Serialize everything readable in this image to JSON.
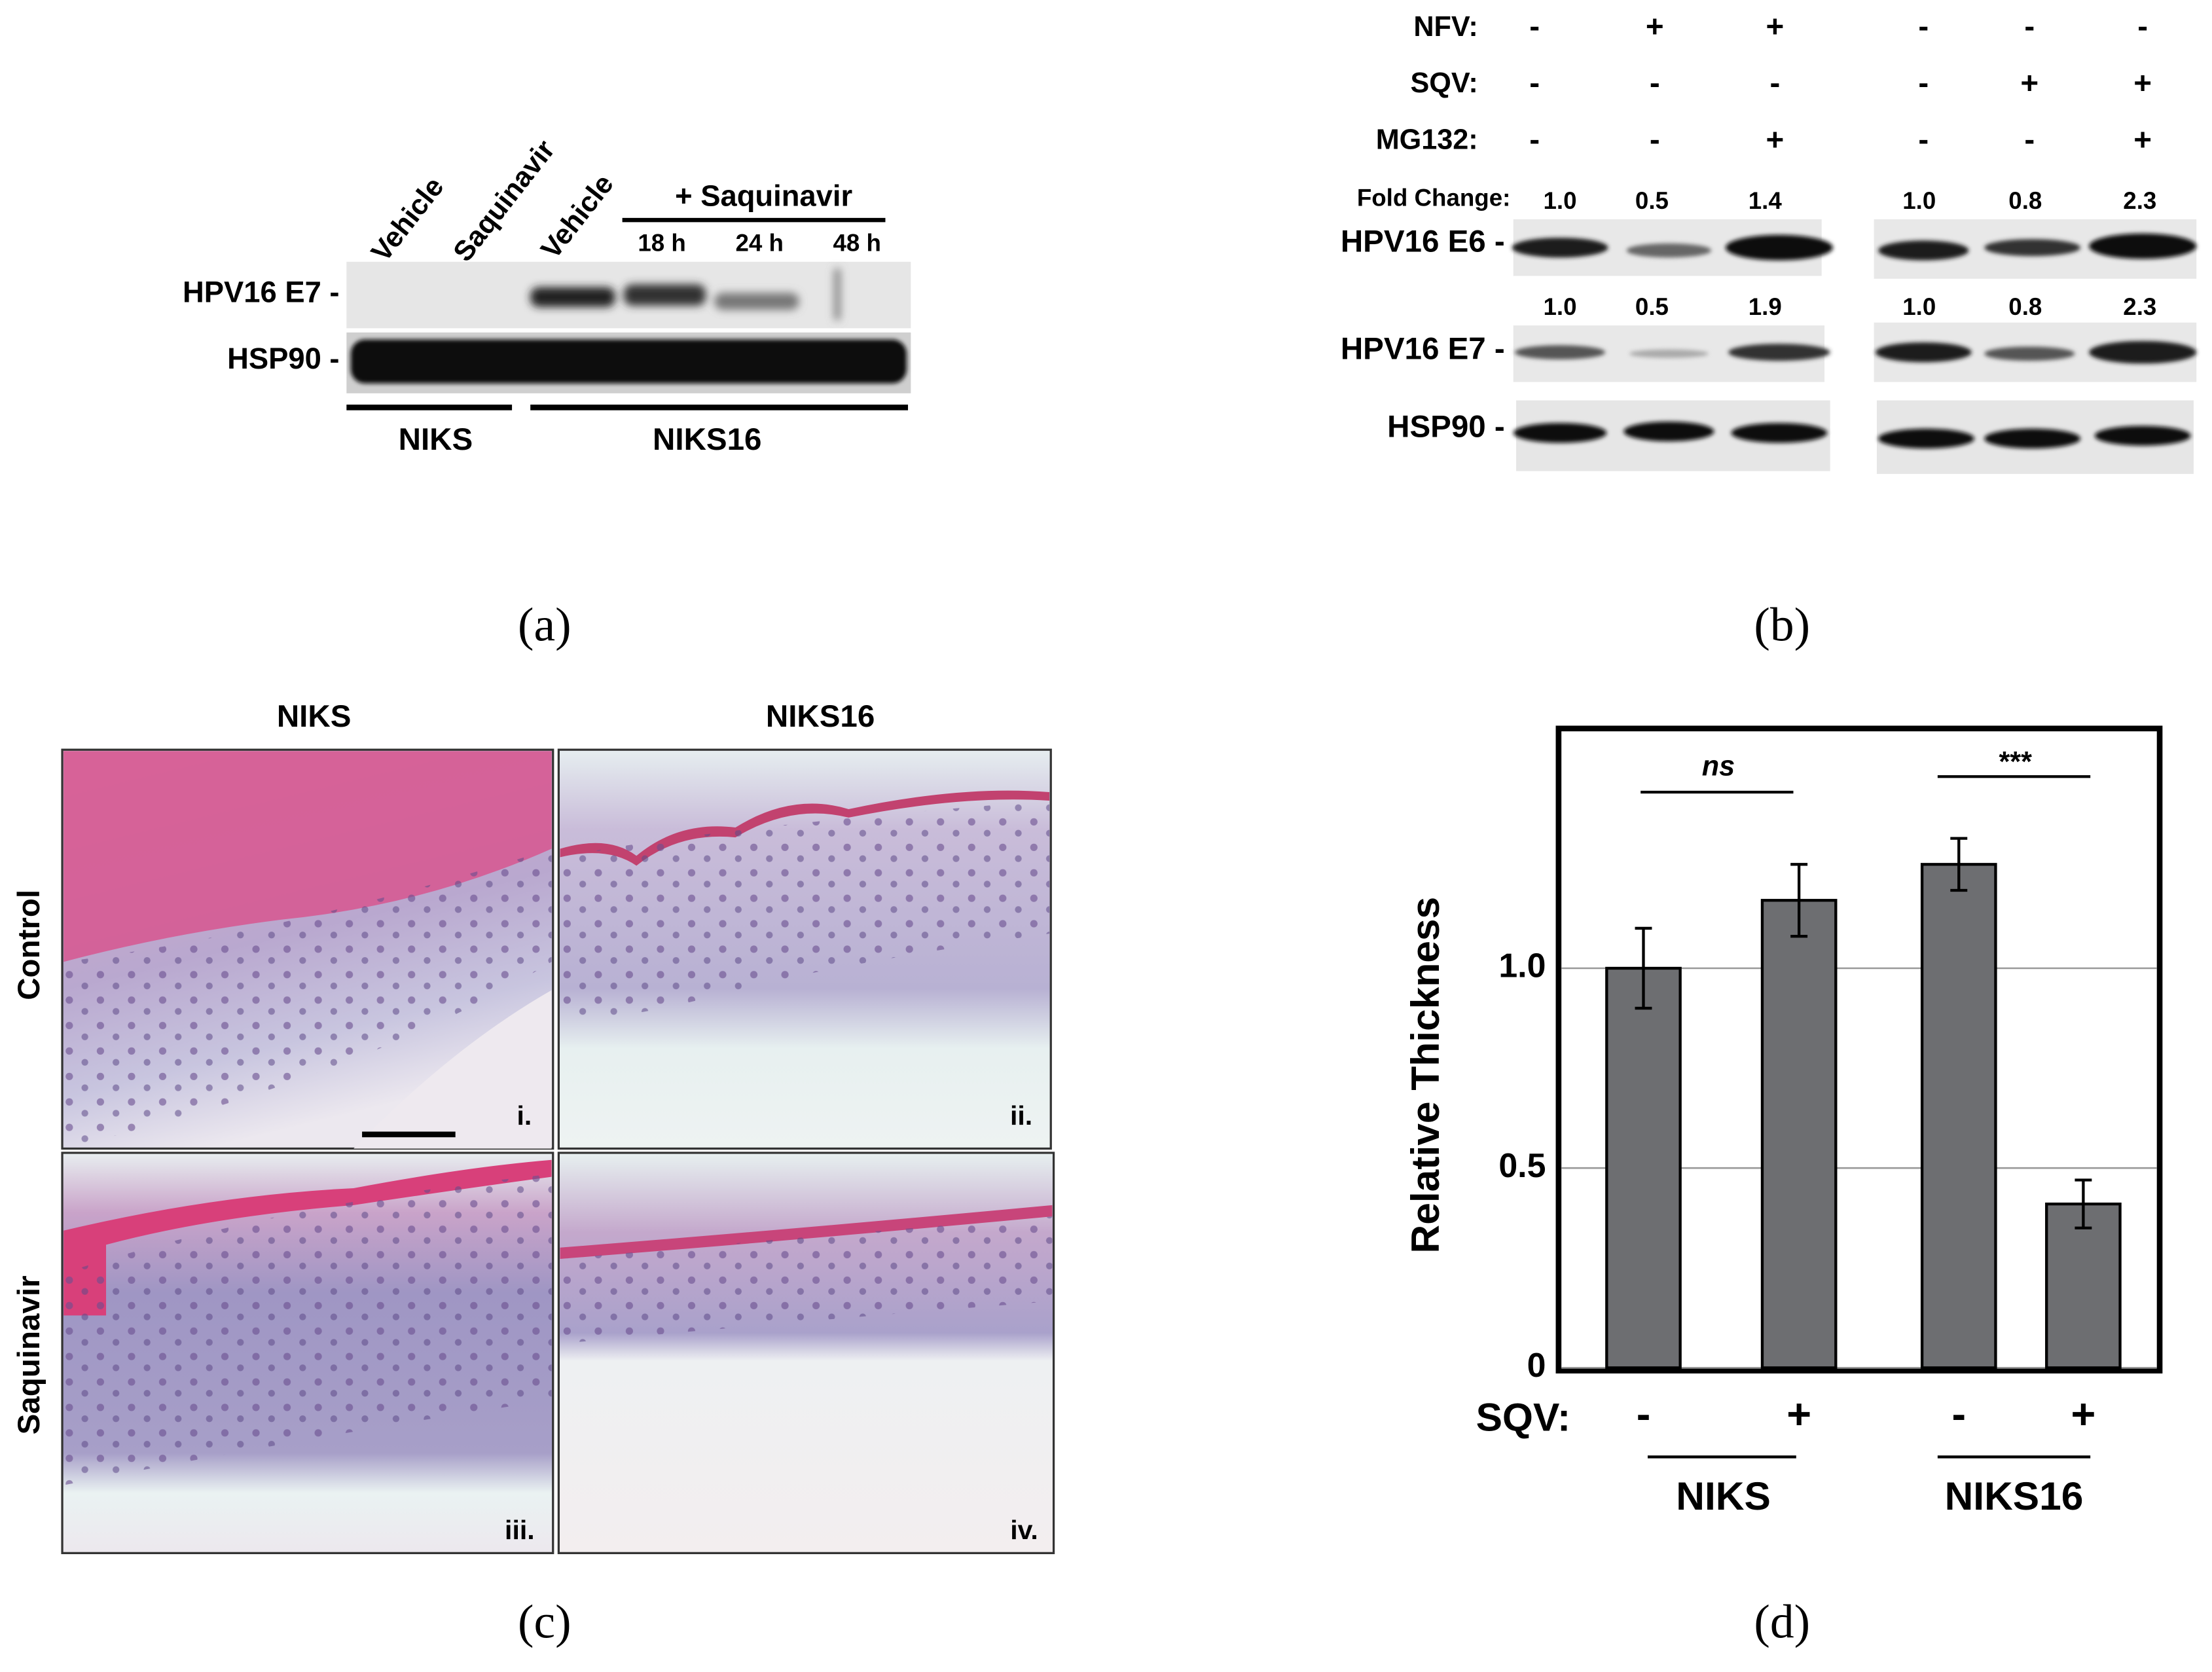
{
  "panel_a": {
    "lanes": [
      "Vehicle",
      "Saquinavir",
      "Vehicle"
    ],
    "treatment": "+ Saquinavir",
    "times": [
      "18 h",
      "24 h",
      "48 h"
    ],
    "rows": [
      "HPV16 E7 -",
      "HSP90 -"
    ],
    "groups": [
      "NIKS",
      "NIKS16"
    ],
    "label": "(a)"
  },
  "panel_b": {
    "conditions": [
      {
        "name": "NFV:",
        "signs": [
          "-",
          "+",
          "+",
          "-",
          "-",
          "-"
        ]
      },
      {
        "name": "SQV:",
        "signs": [
          "-",
          "-",
          "-",
          "-",
          "+",
          "+"
        ]
      },
      {
        "name": "MG132:",
        "signs": [
          "-",
          "-",
          "+",
          "-",
          "-",
          "+"
        ]
      }
    ],
    "fold_change_label": "Fold Change:",
    "e6_fold": [
      "1.0",
      "0.5",
      "1.4",
      "1.0",
      "0.8",
      "2.3"
    ],
    "e7_fold": [
      "1.0",
      "0.5",
      "1.9",
      "1.0",
      "0.8",
      "2.3"
    ],
    "rows": [
      "HPV16 E6 -",
      "HPV16 E7 -",
      "HSP90 -"
    ],
    "label": "(b)"
  },
  "panel_c": {
    "columns": [
      "NIKS",
      "NIKS16"
    ],
    "rows": [
      "Control",
      "Saquinavir"
    ],
    "panels": [
      "i.",
      "ii.",
      "iii.",
      "iv."
    ],
    "label": "(c)"
  },
  "chart_data": {
    "type": "bar",
    "y_label": "Relative Thickness",
    "x_label": "SQV:",
    "categories": [
      "-",
      "+",
      "-",
      "+"
    ],
    "groups": [
      "NIKS",
      "NIKS16"
    ],
    "values": [
      1.0,
      1.17,
      1.26,
      0.41
    ],
    "errors": [
      0.1,
      0.09,
      0.065,
      0.06
    ],
    "color": "#6d6e71",
    "ylim": [
      0,
      1.6
    ],
    "yticks": [
      0,
      0.5,
      {
        "value": 1,
        "label": "1.0"
      }
    ],
    "grid": true,
    "annotations": [
      "ns",
      "***"
    ],
    "label": "(d)"
  }
}
